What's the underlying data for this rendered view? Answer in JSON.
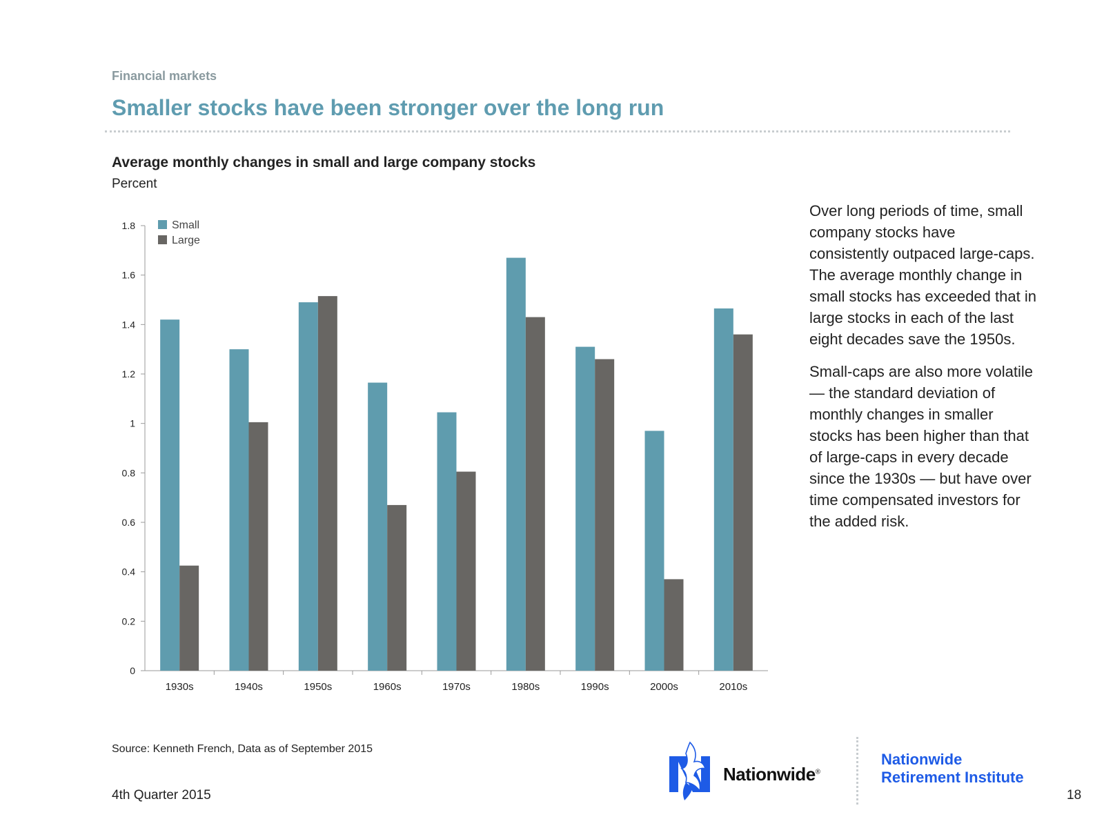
{
  "header": {
    "section_label": "Financial markets",
    "title": "Smaller stocks have been stronger over the long run"
  },
  "colors": {
    "small": "#5f9cae",
    "large": "#686663",
    "accent": "#5f9cb0",
    "brand_blue": "#1e5be6"
  },
  "chart_data": {
    "type": "bar",
    "title": "Average monthly changes in small and large company stocks",
    "ylabel": "Percent",
    "xlabel": "",
    "categories": [
      "1930s",
      "1940s",
      "1950s",
      "1960s",
      "1970s",
      "1980s",
      "1990s",
      "2000s",
      "2010s"
    ],
    "series": [
      {
        "name": "Small",
        "values": [
          1.42,
          1.3,
          1.49,
          1.165,
          1.045,
          1.67,
          1.31,
          0.97,
          1.465
        ]
      },
      {
        "name": "Large",
        "values": [
          0.425,
          1.005,
          1.515,
          0.67,
          0.805,
          1.43,
          1.26,
          0.37,
          1.36
        ]
      }
    ],
    "ylim": [
      0,
      1.8
    ],
    "yticks": [
      "0",
      "0.2",
      "0.4",
      "0.6",
      "0.8",
      "1",
      "1.2",
      "1.4",
      "1.6",
      "1.8"
    ],
    "grid": false,
    "legend": "top-left"
  },
  "commentary": {
    "para1": "Over long periods of time, small company stocks have consistently outpaced large-caps. The average monthly change in small stocks has exceeded that in large stocks in each of the last eight decades save the 1950s.",
    "para2": "Small-caps are also more volatile — the standard deviation of monthly changes in smaller stocks has been higher than that of large-caps in every decade since the 1930s — but have over time compensated investors for the added risk."
  },
  "footer": {
    "source": "Source: Kenneth French, Data as of September 2015",
    "date": "4th Quarter 2015",
    "page_number": "18",
    "logo_text": "Nationwide",
    "logo_mark": "®",
    "institute_line1": "Nationwide",
    "institute_line2": "Retirement Institute"
  }
}
